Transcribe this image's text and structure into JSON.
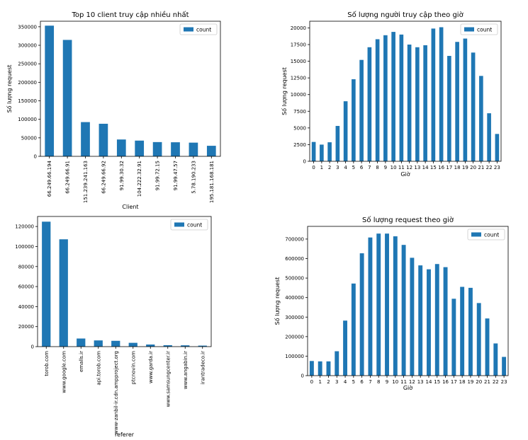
{
  "chart_data": [
    {
      "type": "bar",
      "title": "Top 10 client truy cập nhiều nhất",
      "xlabel": "Client",
      "ylabel": "Số lượng request",
      "legend": "top-right",
      "categories": [
        "66.249.66.194",
        "66.249.66.91",
        "151.239.241.163",
        "66.249.66.92",
        "91.99.30.32",
        "104.222.32.91",
        "91.99.72.15",
        "91.99.47.57",
        "5.78.190.233",
        "195.181.168.181"
      ],
      "series": [
        {
          "name": "count",
          "values": [
            353000,
            314500,
            92500,
            88000,
            45500,
            42500,
            38500,
            38000,
            37000,
            28500
          ]
        }
      ],
      "ylim": [
        0,
        365000
      ],
      "yticks": [
        0,
        50000,
        100000,
        150000,
        200000,
        250000,
        300000,
        350000
      ]
    },
    {
      "type": "bar",
      "title": "Số lượng người truy cập theo giờ",
      "xlabel": "Giờ",
      "ylabel": "Số lượng request",
      "legend": "top-right",
      "categories": [
        "0",
        "1",
        "2",
        "3",
        "4",
        "5",
        "6",
        "7",
        "8",
        "9",
        "10",
        "11",
        "12",
        "13",
        "14",
        "15",
        "16",
        "17",
        "18",
        "19",
        "20",
        "21",
        "22",
        "23"
      ],
      "series": [
        {
          "name": "count",
          "values": [
            2900,
            2500,
            2850,
            5300,
            9000,
            12300,
            15200,
            17100,
            18300,
            18900,
            19400,
            19000,
            17500,
            17100,
            17400,
            19900,
            20100,
            15800,
            17900,
            18400,
            16300,
            12800,
            7200,
            4100
          ]
        }
      ],
      "ylim": [
        0,
        21000
      ],
      "yticks": [
        0,
        2500,
        5000,
        7500,
        10000,
        12500,
        15000,
        17500,
        20000
      ]
    },
    {
      "type": "bar",
      "title": "",
      "xlabel": "referer",
      "ylabel": "",
      "legend": "top-right",
      "categories": [
        "torob.com",
        "www.google.com",
        "emalls.ir",
        "api.torob.com",
        "www-zanbil-ir.cdn.ampproject.org",
        "ptcnovin.com",
        "www.garda.ir",
        "www.samsungcenter.ir",
        "www.angabin.ir",
        "irantradeco.ir"
      ],
      "series": [
        {
          "name": "count",
          "values": [
            124800,
            107200,
            8100,
            6200,
            5800,
            3800,
            2100,
            1400,
            1300,
            1000
          ]
        }
      ],
      "ylim": [
        0,
        130000
      ],
      "yticks": [
        0,
        20000,
        40000,
        60000,
        80000,
        100000,
        120000
      ]
    },
    {
      "type": "bar",
      "title": "Số lượng request theo giờ",
      "xlabel": "Giờ",
      "ylabel": "Số lượng request",
      "legend": "top-right",
      "categories": [
        "0",
        "1",
        "2",
        "3",
        "4",
        "5",
        "6",
        "7",
        "8",
        "9",
        "10",
        "11",
        "12",
        "13",
        "14",
        "15",
        "16",
        "17",
        "18",
        "19",
        "20",
        "21",
        "22",
        "23"
      ],
      "series": [
        {
          "name": "count",
          "values": [
            75000,
            73000,
            73000,
            125000,
            282000,
            472000,
            627000,
            708000,
            728000,
            728000,
            714000,
            670000,
            604000,
            565000,
            545000,
            572000,
            556000,
            394000,
            455000,
            450000,
            372000,
            293000,
            165000,
            96000
          ]
        }
      ],
      "ylim": [
        0,
        765000
      ],
      "yticks": [
        0,
        100000,
        200000,
        300000,
        400000,
        500000,
        600000,
        700000
      ]
    }
  ]
}
